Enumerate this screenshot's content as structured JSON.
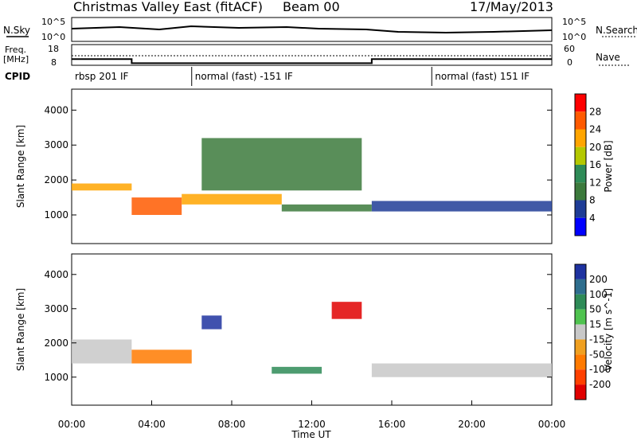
{
  "header": {
    "title": "Christmas Valley East (fitACF)",
    "beam": "Beam 00",
    "date": "17/May/2013"
  },
  "nsky_panel": {
    "left_label": "N.Sky",
    "right_label": "N.Search",
    "left_ticks": [
      "10^5",
      "10^0"
    ],
    "right_ticks": [
      "10^5",
      "10^0"
    ]
  },
  "freq_panel": {
    "left_label_1": "Freq.",
    "left_label_2": "[MHz]",
    "right_label": "Nave",
    "left_ticks": [
      "18",
      "8"
    ],
    "right_ticks": [
      "60",
      "0"
    ]
  },
  "cpid": {
    "label": "CPID",
    "segments": [
      {
        "label": "rbsp 201 IF",
        "start_hour": 0,
        "end_hour": 6
      },
      {
        "label": "normal (fast) -151 IF",
        "start_hour": 6,
        "end_hour": 18
      },
      {
        "label": "normal (fast) 151 IF",
        "start_hour": 18,
        "end_hour": 24
      }
    ]
  },
  "power_panel": {
    "ylabel": "Slant Range [km]",
    "colorbar_label": "Power [dB]",
    "colorbar_ticks": [
      "28",
      "24",
      "20",
      "16",
      "12",
      "8",
      "4"
    ],
    "colorbar_colors": [
      "#ff0000",
      "#ff5a00",
      "#ffa500",
      "#b4c800",
      "#2e8b57",
      "#3c7a3c",
      "#1e3c96",
      "#0000ff"
    ]
  },
  "velocity_panel": {
    "ylabel": "Slant Range [km]",
    "colorbar_label": "Velocity [m s^-1]",
    "colorbar_ticks": [
      "200",
      "100",
      "50",
      "15",
      "-15",
      "-50",
      "-100",
      "-200"
    ],
    "colorbar_colors": [
      "#1e32a0",
      "#2e6e8e",
      "#2e8b57",
      "#4fc34f",
      "#c8c8c8",
      "#f0a020",
      "#ff7a00",
      "#ff4000",
      "#e00000"
    ]
  },
  "xaxis": {
    "label": "Time UT",
    "ticks": [
      "00:00",
      "04:00",
      "08:00",
      "12:00",
      "16:00",
      "20:00",
      "00:00"
    ]
  },
  "chart_data": {
    "type": "heatmap",
    "title": "Christmas Valley East (fitACF)",
    "xlabel": "Time UT",
    "ylabel": "Slant Range [km]",
    "xlim_hours": [
      0,
      24
    ],
    "ylim_km": [
      180,
      4600
    ],
    "yticks": [
      1000,
      2000,
      3000,
      4000
    ],
    "freq_mhz": [
      {
        "start_hour": 0,
        "end_hour": 3,
        "value": 11
      },
      {
        "start_hour": 3,
        "end_hour": 15,
        "value": 9
      },
      {
        "start_hour": 15,
        "end_hour": 24,
        "value": 11
      }
    ],
    "power_regions": [
      {
        "t0": 0.0,
        "t1": 3.0,
        "r0": 1700,
        "r1": 1900,
        "db": 22
      },
      {
        "t0": 3.0,
        "t1": 5.5,
        "r0": 1000,
        "r1": 1500,
        "db": 28
      },
      {
        "t0": 5.5,
        "t1": 10.5,
        "r0": 1300,
        "r1": 1600,
        "db": 24
      },
      {
        "t0": 6.5,
        "t1": 14.5,
        "r0": 1700,
        "r1": 3200,
        "db": 10
      },
      {
        "t0": 10.5,
        "t1": 15.0,
        "r0": 1100,
        "r1": 1300,
        "db": 12
      },
      {
        "t0": 15.0,
        "t1": 24.0,
        "r0": 1100,
        "r1": 1400,
        "db": 6
      }
    ],
    "velocity_regions": [
      {
        "t0": 0.0,
        "t1": 3.0,
        "r0": 1400,
        "r1": 2100,
        "v": 0
      },
      {
        "t0": 3.0,
        "t1": 6.0,
        "r0": 1400,
        "r1": 1800,
        "v": -40
      },
      {
        "t0": 6.5,
        "t1": 7.5,
        "r0": 2400,
        "r1": 2800,
        "v": 150
      },
      {
        "t0": 10.0,
        "t1": 12.5,
        "r0": 1100,
        "r1": 1300,
        "v": 40
      },
      {
        "t0": 13.0,
        "t1": 14.5,
        "r0": 2700,
        "r1": 3200,
        "v": -200
      },
      {
        "t0": 15.0,
        "t1": 24.0,
        "r0": 1000,
        "r1": 1400,
        "v": 0
      }
    ]
  }
}
